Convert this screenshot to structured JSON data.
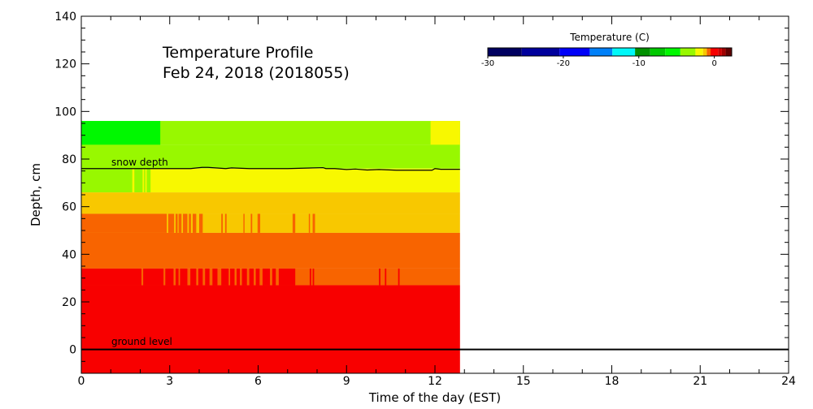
{
  "chart_data": {
    "type": "heatmap",
    "title": "Temperature Profile",
    "subtitle": "Feb 24, 2018 (2018055)",
    "xlabel": "Time of the day (EST)",
    "ylabel": "Depth, cm",
    "xlim": [
      0,
      24
    ],
    "ylim": [
      -10,
      140
    ],
    "xticks": [
      0,
      3,
      6,
      9,
      12,
      15,
      18,
      21,
      24
    ],
    "yticks": [
      0,
      20,
      40,
      60,
      80,
      100,
      120,
      140
    ],
    "data_end_hour": 12.85,
    "colorbar": {
      "title": "Temperature (C)",
      "range": [
        -30,
        2.3
      ],
      "ticks": [
        -30,
        -20,
        -10,
        0
      ],
      "tick_labels": [
        "-30",
        "-20",
        "-10",
        "0"
      ],
      "segments": [
        {
          "from": -30,
          "to": -25.5,
          "color": "#000060"
        },
        {
          "from": -25.5,
          "to": -20.5,
          "color": "#00009c"
        },
        {
          "from": -20.5,
          "to": -16.5,
          "color": "#0000f8"
        },
        {
          "from": -16.5,
          "to": -13.5,
          "color": "#0080f8"
        },
        {
          "from": -13.5,
          "to": -10.5,
          "color": "#00f8f8"
        },
        {
          "from": -10.5,
          "to": -8.5,
          "color": "#009000"
        },
        {
          "from": -8.5,
          "to": -6.5,
          "color": "#00c800"
        },
        {
          "from": -6.5,
          "to": -4.5,
          "color": "#00f800"
        },
        {
          "from": -4.5,
          "to": -2.5,
          "color": "#98f800"
        },
        {
          "from": -2.5,
          "to": -1.5,
          "color": "#f8f800"
        },
        {
          "from": -1.5,
          "to": -1.0,
          "color": "#f8c800"
        },
        {
          "from": -1.0,
          "to": -0.5,
          "color": "#f86400"
        },
        {
          "from": -0.5,
          "to": 0.5,
          "color": "#f80000"
        },
        {
          "from": 0.5,
          "to": 1.0,
          "color": "#d00000"
        },
        {
          "from": 1.0,
          "to": 1.5,
          "color": "#a00000"
        },
        {
          "from": 1.5,
          "to": 2.3,
          "color": "#600000"
        }
      ]
    },
    "layers": [
      {
        "top": 96,
        "bottom": 86,
        "base": "#98f800",
        "patches": [
          {
            "color": "#00f800",
            "t": [
              [
                0,
                2.68
              ]
            ]
          },
          {
            "color": "#f8f800",
            "t": [
              [
                11.85,
                12.85
              ]
            ]
          }
        ]
      },
      {
        "top": 86,
        "bottom": 76,
        "base": "#98f800",
        "patches": []
      },
      {
        "top": 76,
        "bottom": 66,
        "base": "#f8f800",
        "patches": [
          {
            "color": "#98f800",
            "t": [
              [
                0,
                1.73
              ],
              [
                1.8,
                2.08
              ],
              [
                2.13,
                2.17
              ],
              [
                2.22,
                2.35
              ]
            ]
          }
        ]
      },
      {
        "top": 66,
        "bottom": 57,
        "base": "#f8c800",
        "patches": []
      },
      {
        "top": 57,
        "bottom": 49,
        "base": "#f8c800",
        "patches": [
          {
            "color": "#f86400",
            "t": [
              [
                0,
                2.9
              ],
              [
                2.95,
                3.15
              ],
              [
                3.2,
                3.27
              ],
              [
                3.3,
                3.4
              ],
              [
                3.45,
                3.6
              ],
              [
                3.65,
                3.72
              ],
              [
                3.78,
                3.9
              ],
              [
                4.0,
                4.12
              ],
              [
                4.75,
                4.8
              ],
              [
                4.88,
                4.93
              ],
              [
                5.5,
                5.54
              ],
              [
                5.75,
                5.8
              ],
              [
                5.98,
                6.07
              ],
              [
                7.17,
                7.26
              ],
              [
                7.72,
                7.76
              ],
              [
                7.85,
                7.93
              ]
            ]
          }
        ]
      },
      {
        "top": 49,
        "bottom": 34,
        "base": "#f86400",
        "patches": []
      },
      {
        "top": 34,
        "bottom": 27,
        "base": "#f86400",
        "patches": [
          {
            "color": "#f80000",
            "t": [
              [
                0,
                2.04
              ],
              [
                2.1,
                2.79
              ],
              [
                2.85,
                3.13
              ],
              [
                3.2,
                3.3
              ],
              [
                3.35,
                3.6
              ],
              [
                3.7,
                3.9
              ],
              [
                3.97,
                4.12
              ],
              [
                4.2,
                4.35
              ],
              [
                4.45,
                4.62
              ],
              [
                4.75,
                5.0
              ],
              [
                5.05,
                5.2
              ],
              [
                5.27,
                5.38
              ],
              [
                5.45,
                5.62
              ],
              [
                5.7,
                5.85
              ],
              [
                5.92,
                6.05
              ],
              [
                6.15,
                6.4
              ],
              [
                6.48,
                6.6
              ],
              [
                6.7,
                7.26
              ],
              [
                7.75,
                7.8
              ],
              [
                7.85,
                7.9
              ],
              [
                10.1,
                10.15
              ],
              [
                10.3,
                10.35
              ],
              [
                10.75,
                10.8
              ]
            ]
          }
        ]
      },
      {
        "top": 27,
        "bottom": -10,
        "base": "#f80000",
        "patches": []
      }
    ],
    "snow_depth": {
      "label": "snow depth",
      "x": [
        0,
        3.7,
        4.1,
        4.3,
        4.9,
        5.1,
        5.7,
        6.6,
        7.0,
        8.2,
        8.3,
        8.6,
        9.0,
        9.3,
        9.7,
        10.1,
        10.7,
        11.9,
        12.0,
        12.2,
        12.85
      ],
      "y": [
        76,
        76,
        76.5,
        76.5,
        76,
        76.3,
        76,
        76,
        76,
        76.4,
        76,
        76,
        75.6,
        75.8,
        75.4,
        75.6,
        75.3,
        75.3,
        76,
        75.7,
        75.7
      ]
    },
    "ground_level": {
      "label": "ground level",
      "y": 0
    }
  }
}
